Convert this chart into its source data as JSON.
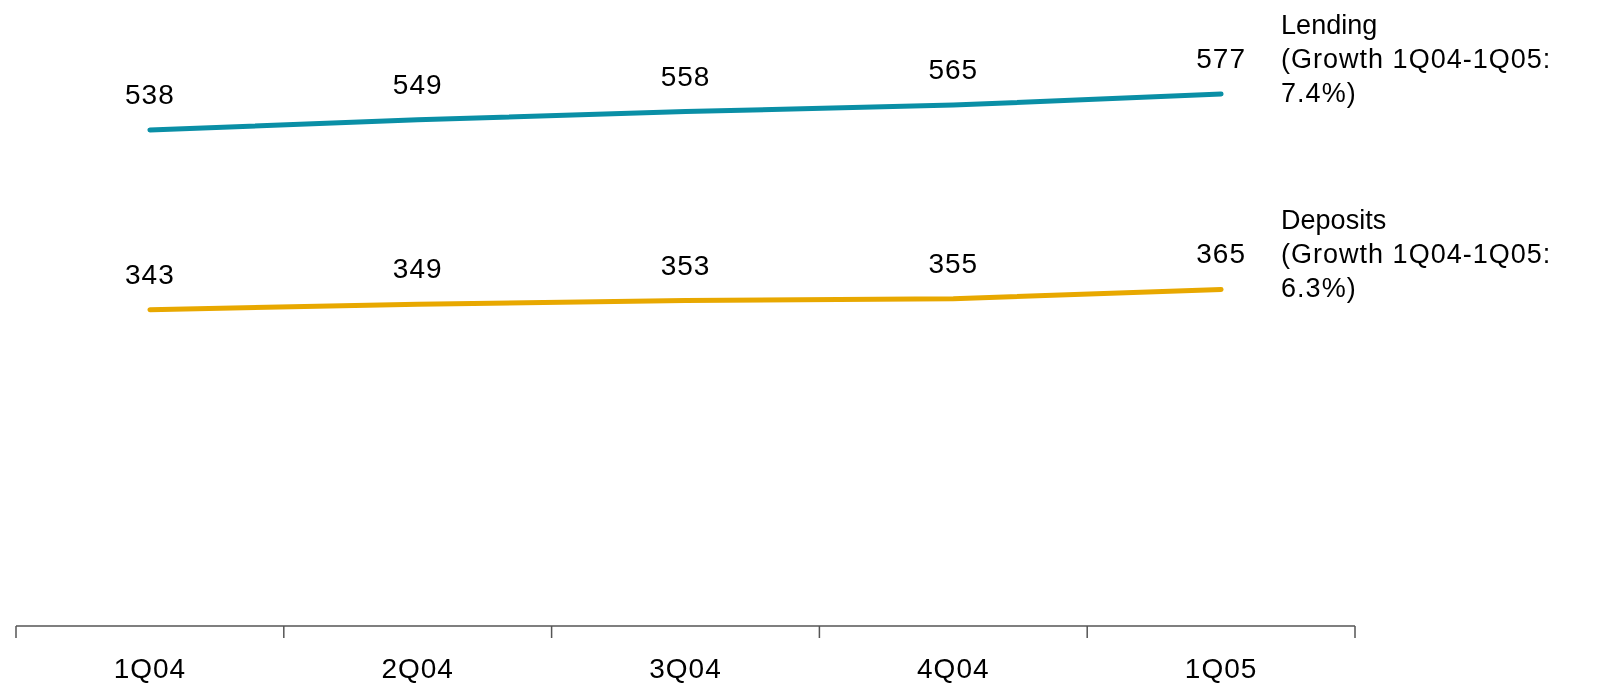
{
  "chart_data": {
    "type": "line",
    "categories": [
      "1Q04",
      "2Q04",
      "3Q04",
      "4Q04",
      "1Q05"
    ],
    "series": [
      {
        "name": "Lending",
        "color": "#0a8fa6",
        "values": [
          538,
          549,
          558,
          565,
          577
        ]
      },
      {
        "name": "Deposits",
        "color": "#e8a800",
        "values": [
          343,
          349,
          353,
          355,
          365
        ]
      }
    ],
    "tick_labels": "x",
    "data_labels": true,
    "legend": false,
    "marker": "none",
    "line_style": "solid",
    "annotations": [
      "(Growth 1Q04-1Q05: 7.4%)",
      "(Growth 1Q04-1Q05: 6.3%)"
    ]
  }
}
